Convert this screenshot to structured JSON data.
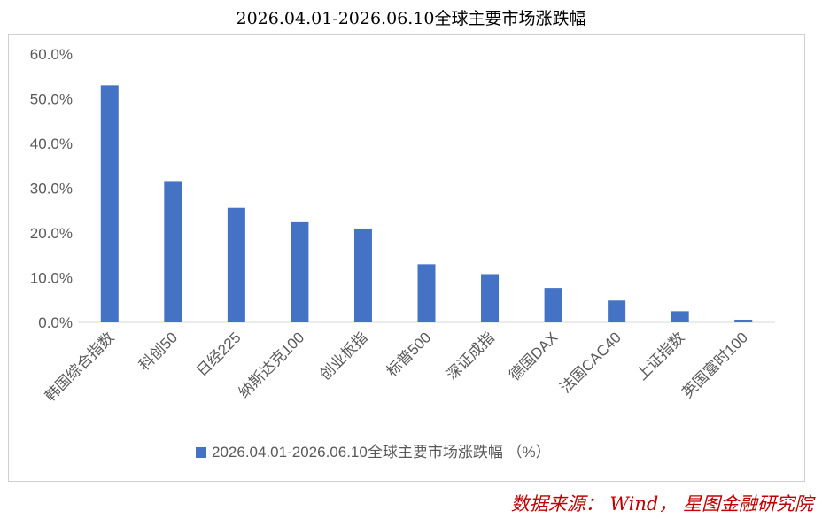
{
  "chart_data": {
    "type": "bar",
    "title": "2026.04.01-2026.06.10全球主要市场涨跌幅",
    "categories": [
      "韩国综合指数",
      "科创50",
      "日经225",
      "纳斯达克100",
      "创业板指",
      "标普500",
      "深证成指",
      "德国DAX",
      "法国CAC40",
      "上证指数",
      "英国富时100"
    ],
    "series": [
      {
        "name": "2026.04.01-2026.06.10全球主要市场涨跌幅 （%）",
        "values": [
          53.0,
          31.6,
          25.6,
          22.4,
          21.0,
          13.0,
          10.8,
          7.7,
          4.9,
          2.5,
          0.6
        ],
        "color": "#4472C4"
      }
    ],
    "y_ticks": [
      "0.0%",
      "10.0%",
      "20.0%",
      "30.0%",
      "40.0%",
      "50.0%",
      "60.0%"
    ],
    "ylim": [
      0,
      60
    ],
    "xlabel": "",
    "ylabel": "",
    "grid": false,
    "legend_position": "bottom"
  },
  "source_note": "数据来源： Wind， 星图金融研究院"
}
